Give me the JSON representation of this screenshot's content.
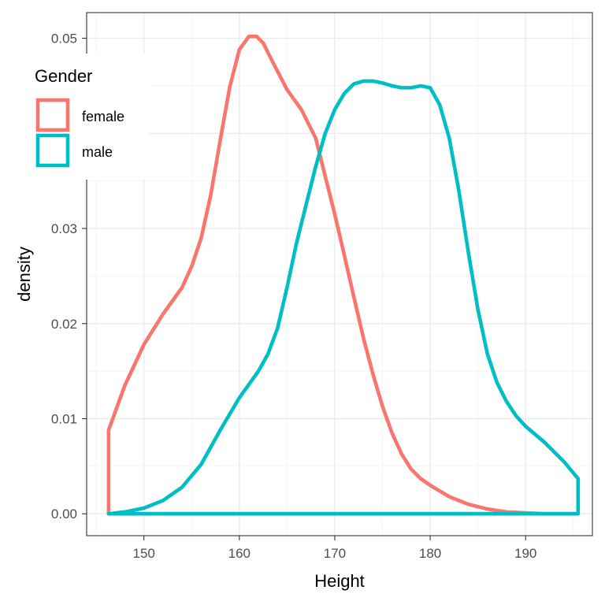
{
  "chart_data": {
    "type": "density",
    "xlabel": "Height",
    "ylabel": "density",
    "xlim": [
      144,
      197
    ],
    "ylim": [
      -0.0023,
      0.0527
    ],
    "x_ticks": [
      150,
      160,
      170,
      180,
      190
    ],
    "x_tick_labels": [
      "150",
      "160",
      "170",
      "180",
      "190"
    ],
    "y_ticks": [
      0.0,
      0.01,
      0.02,
      0.03,
      0.04,
      0.05
    ],
    "y_tick_labels": [
      "0.00",
      "0.01",
      "0.02",
      "0.03",
      "0.04",
      "0.05"
    ],
    "grid": true,
    "legend": {
      "title": "Gender",
      "position": "top-left",
      "entries": [
        "female",
        "male"
      ]
    },
    "series": [
      {
        "name": "female",
        "color": "#F8766D",
        "x": [
          146.3,
          146.3,
          148,
          150,
          152,
          154,
          155,
          156,
          157,
          158,
          159,
          160,
          161,
          161.8,
          162.5,
          163.5,
          165,
          166.5,
          168,
          169,
          170,
          171,
          172,
          173,
          174,
          175,
          176,
          177,
          178,
          179,
          180,
          182,
          184,
          186,
          188,
          190,
          192,
          195.5
        ],
        "y": [
          0.0,
          0.0088,
          0.0135,
          0.0178,
          0.021,
          0.0238,
          0.026,
          0.029,
          0.0335,
          0.0393,
          0.0449,
          0.0488,
          0.0502,
          0.0502,
          0.0495,
          0.0475,
          0.0446,
          0.0425,
          0.0395,
          0.0355,
          0.0315,
          0.0272,
          0.0228,
          0.0185,
          0.0147,
          0.0113,
          0.0085,
          0.0063,
          0.0047,
          0.0037,
          0.003,
          0.0018,
          0.001,
          0.0005,
          0.0002,
          0.0001,
          0.0,
          0.0
        ]
      },
      {
        "name": "male",
        "color": "#00BFC4",
        "x": [
          146.3,
          148,
          150,
          152,
          154,
          156,
          158,
          160,
          161,
          162,
          163,
          164,
          165,
          166,
          167,
          168,
          169,
          170,
          171,
          172,
          173,
          174,
          175,
          176,
          177,
          178,
          179,
          180,
          181,
          182,
          183,
          184,
          185,
          186,
          187,
          188,
          189,
          190,
          192,
          194,
          195.5,
          195.5
        ],
        "y": [
          0.0,
          0.0002,
          0.0006,
          0.0014,
          0.0028,
          0.0052,
          0.0088,
          0.0122,
          0.0136,
          0.015,
          0.0168,
          0.0195,
          0.0238,
          0.0285,
          0.0325,
          0.0365,
          0.04,
          0.0425,
          0.0442,
          0.0452,
          0.0455,
          0.0455,
          0.0453,
          0.045,
          0.0448,
          0.0448,
          0.045,
          0.0448,
          0.043,
          0.0395,
          0.034,
          0.0275,
          0.0215,
          0.0168,
          0.0138,
          0.0118,
          0.0103,
          0.0092,
          0.0075,
          0.0055,
          0.0037,
          0.0
        ]
      }
    ]
  }
}
